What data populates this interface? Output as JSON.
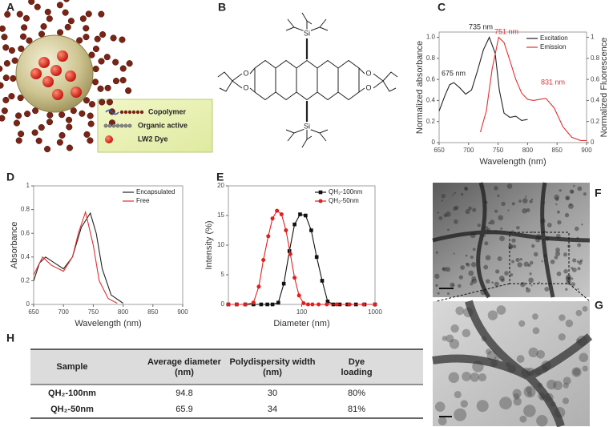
{
  "panel_labels": [
    "A",
    "B",
    "C",
    "D",
    "E",
    "F",
    "G",
    "H"
  ],
  "illustration": {
    "legend": [
      "Copolymer",
      "Organic active",
      "LW2 Dye"
    ]
  },
  "structure": {
    "atoms": [
      "Si",
      "Si",
      "O",
      "O",
      "O",
      "O"
    ]
  },
  "chart_data": [
    {
      "type": "line",
      "xlabel": "Wavelength (nm)",
      "ylabel": "Normalized absorbance",
      "y2label": "Normalized Fluorescence",
      "xlim": [
        650,
        900
      ],
      "xticks": [
        650,
        700,
        750,
        800,
        850,
        900
      ],
      "ylim": [
        0,
        1.05
      ],
      "yticks": [
        0,
        0.2,
        0.4,
        0.6,
        0.8,
        {
          "value": 1,
          "label": "1.0"
        }
      ],
      "y2lim": [
        0,
        1.05
      ],
      "y2ticks": [
        0,
        0.2,
        0.4,
        0.6,
        0.8,
        1
      ],
      "legend": "upper right",
      "annotations": [
        "675 nm",
        "735 nm",
        "751 nm",
        "831 nm"
      ],
      "series": [
        {
          "name": "Excitation",
          "color": "#222222",
          "x": [
            650,
            660,
            668,
            675,
            685,
            695,
            705,
            715,
            725,
            735,
            745,
            752,
            760,
            770,
            780,
            790,
            800
          ],
          "values": [
            0.3,
            0.45,
            0.55,
            0.57,
            0.52,
            0.46,
            0.5,
            0.68,
            0.88,
            1.0,
            0.85,
            0.5,
            0.28,
            0.24,
            0.25,
            0.21,
            0.22
          ]
        },
        {
          "name": "Emission",
          "color": "#e03030",
          "axis": "y2",
          "x": [
            720,
            730,
            740,
            751,
            760,
            770,
            780,
            790,
            800,
            810,
            820,
            831,
            845,
            860,
            875,
            890,
            900
          ],
          "values": [
            0.1,
            0.3,
            0.7,
            1.0,
            0.95,
            0.78,
            0.6,
            0.47,
            0.41,
            0.4,
            0.41,
            0.42,
            0.33,
            0.15,
            0.05,
            0.02,
            0.02
          ]
        }
      ]
    },
    {
      "type": "line",
      "xlabel": "Wavelength (nm)",
      "ylabel": "Absorbance",
      "xlim": [
        650,
        900
      ],
      "xticks": [
        650,
        700,
        750,
        800,
        850,
        900
      ],
      "ylim": [
        0,
        1
      ],
      "yticks": [
        0,
        0.2,
        0.4,
        0.6,
        0.8,
        1
      ],
      "legend": "upper right",
      "series": [
        {
          "name": "Encapsulated",
          "color": "#222222",
          "x": [
            650,
            660,
            670,
            685,
            700,
            715,
            730,
            745,
            755,
            765,
            780,
            800
          ],
          "values": [
            0.2,
            0.35,
            0.4,
            0.35,
            0.3,
            0.4,
            0.65,
            0.77,
            0.6,
            0.3,
            0.08,
            0.01
          ]
        },
        {
          "name": "Free",
          "color": "#e03030",
          "x": [
            650,
            665,
            680,
            700,
            715,
            725,
            737,
            750,
            760,
            775,
            790
          ],
          "values": [
            0.25,
            0.4,
            0.33,
            0.28,
            0.4,
            0.6,
            0.78,
            0.5,
            0.2,
            0.05,
            0.01
          ]
        }
      ]
    },
    {
      "type": "line",
      "xlabel": "Diameter (nm)",
      "ylabel": "Intensity (%)",
      "xscale": "log",
      "xlim": [
        10,
        1000
      ],
      "xticks": [
        100,
        1000
      ],
      "ylim": [
        0,
        20
      ],
      "yticks": [
        0,
        5,
        10,
        15,
        20
      ],
      "legend": "upper right",
      "series": [
        {
          "name": "QH₂-100nm",
          "color": "#111111",
          "marker": "square",
          "x": [
            10,
            13,
            17,
            22,
            28,
            34,
            40,
            48,
            57,
            68,
            80,
            95,
            113,
            135,
            160,
            190,
            226,
            270,
            330,
            420,
            550,
            720,
            1000
          ],
          "values": [
            0,
            0,
            0,
            0,
            0,
            0,
            0,
            0.3,
            3.5,
            9,
            13.5,
            15.2,
            15,
            12.5,
            8,
            4,
            0.5,
            0,
            0,
            0,
            0,
            0,
            0
          ]
        },
        {
          "name": "QH₂-50nm",
          "color": "#e02020",
          "marker": "circle",
          "x": [
            10,
            13,
            17,
            22,
            26,
            30,
            35,
            40,
            46,
            53,
            61,
            70,
            80,
            92,
            106,
            122,
            140,
            170,
            220,
            300,
            450,
            700,
            1000
          ],
          "values": [
            0,
            0,
            0,
            0.3,
            3,
            7.5,
            11.5,
            14.5,
            15.8,
            15.2,
            12.5,
            8.5,
            4.5,
            1.5,
            0.2,
            0,
            0,
            0,
            0,
            0,
            0,
            0,
            0
          ]
        }
      ]
    }
  ],
  "table": {
    "header": [
      "Sample",
      "Average diameter (nm)",
      "Polydispersity width (nm)",
      "Dye loading"
    ],
    "rows": [
      [
        "QH₂-100nm",
        "94.8",
        "30",
        "80%"
      ],
      [
        "QH₂-50nm",
        "65.9",
        "34",
        "81%"
      ]
    ]
  }
}
